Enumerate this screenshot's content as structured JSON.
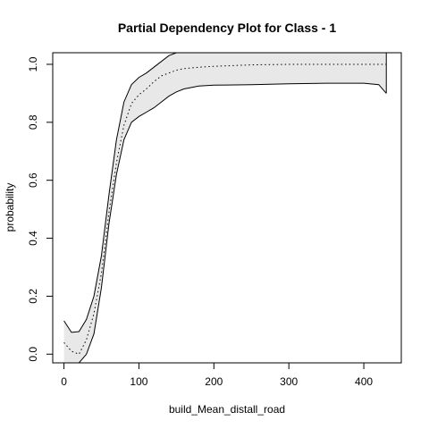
{
  "chart_data": {
    "type": "line",
    "title": "Partial Dependency Plot for Class - 1",
    "xlabel": "build_Mean_distall_road",
    "ylabel": "probability",
    "xlim": [
      -15,
      450
    ],
    "ylim": [
      -0.03,
      1.04
    ],
    "x_ticks": [
      0,
      100,
      200,
      300,
      400
    ],
    "y_ticks": [
      0.0,
      0.2,
      0.4,
      0.6,
      0.8,
      1.0
    ],
    "x_tick_labels": [
      "0",
      "100",
      "200",
      "300",
      "400"
    ],
    "y_tick_labels": [
      "0.0",
      "0.2",
      "0.4",
      "0.6",
      "0.8",
      "1.0"
    ],
    "grid": false,
    "series": [
      {
        "role": "upper",
        "x": [
          0,
          10,
          20,
          30,
          40,
          50,
          60,
          70,
          80,
          90,
          100,
          110,
          120,
          130,
          140,
          150,
          160,
          180,
          200,
          250,
          300,
          350,
          400,
          420,
          430
        ],
        "y": [
          0.115,
          0.075,
          0.078,
          0.12,
          0.2,
          0.34,
          0.55,
          0.74,
          0.87,
          0.93,
          0.955,
          0.97,
          0.99,
          1.01,
          1.03,
          1.04,
          1.04,
          1.04,
          1.04,
          1.04,
          1.04,
          1.04,
          1.04,
          1.04,
          1.04
        ]
      },
      {
        "role": "mean",
        "x": [
          0,
          10,
          20,
          30,
          40,
          50,
          60,
          70,
          80,
          90,
          100,
          110,
          120,
          130,
          140,
          150,
          160,
          180,
          200,
          250,
          300,
          350,
          400,
          420,
          430
        ],
        "y": [
          0.04,
          0.01,
          0.0,
          0.05,
          0.14,
          0.28,
          0.49,
          0.66,
          0.79,
          0.865,
          0.895,
          0.915,
          0.94,
          0.96,
          0.97,
          0.98,
          0.985,
          0.99,
          0.993,
          0.998,
          1.0,
          1.0,
          1.0,
          1.0,
          1.0
        ]
      },
      {
        "role": "lower",
        "x": [
          0,
          10,
          20,
          30,
          40,
          50,
          60,
          70,
          80,
          90,
          100,
          110,
          120,
          130,
          140,
          150,
          160,
          180,
          200,
          250,
          300,
          350,
          400,
          420,
          430
        ],
        "y": [
          -0.03,
          -0.03,
          -0.03,
          0.0,
          0.07,
          0.23,
          0.45,
          0.62,
          0.74,
          0.8,
          0.82,
          0.835,
          0.85,
          0.87,
          0.89,
          0.905,
          0.915,
          0.925,
          0.928,
          0.93,
          0.933,
          0.935,
          0.935,
          0.93,
          0.9
        ]
      }
    ],
    "colors": {
      "band_fill": "#e8e8e8",
      "line": "#000000",
      "background": "#ffffff"
    }
  }
}
